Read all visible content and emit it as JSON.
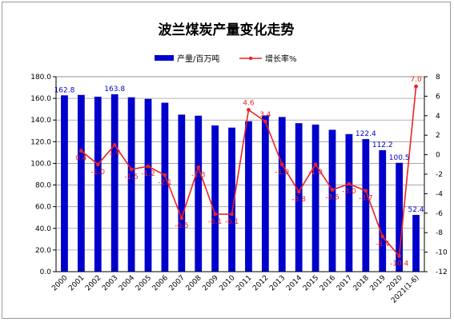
{
  "chart_data": {
    "type": "bar",
    "title": "波兰煤炭产量变化走势",
    "categories": [
      "2000",
      "2001",
      "2002",
      "2003",
      "2004",
      "2005",
      "2006",
      "2007",
      "2008",
      "2009",
      "2010",
      "2011",
      "2012",
      "2013",
      "2014",
      "2015",
      "2016",
      "2017",
      "2018",
      "2019",
      "2020",
      "2021(1-6)"
    ],
    "series": [
      {
        "name": "产量/百万吨",
        "type": "bar",
        "axis": "left",
        "color": "#0000cc",
        "values": [
          162.8,
          163.2,
          161.5,
          163.8,
          161.0,
          159.5,
          156.0,
          145.0,
          144.0,
          135.0,
          133.0,
          138.9,
          144.2,
          142.8,
          137.1,
          135.8,
          131.0,
          127.0,
          122.4,
          112.2,
          100.5,
          52.4
        ]
      },
      {
        "name": "增长率%",
        "type": "line",
        "axis": "right",
        "color": "#ee2222",
        "values": [
          null,
          0.4,
          -1.0,
          1.0,
          -1.5,
          -1.2,
          -2.1,
          -6.5,
          -1.3,
          -6.1,
          -6.1,
          4.6,
          3.4,
          -1.0,
          -3.8,
          -1.0,
          -3.6,
          -3.0,
          -3.7,
          -8.4,
          -10.4,
          7.0
        ]
      }
    ],
    "bar_labels": [
      {
        "index": 0,
        "text": "162.8"
      },
      {
        "index": 3,
        "text": "163.8"
      },
      {
        "index": 18,
        "text": "122.4"
      },
      {
        "index": 19,
        "text": "112.2"
      },
      {
        "index": 20,
        "text": "100.5"
      },
      {
        "index": 21,
        "text": "52.4"
      }
    ],
    "line_labels": [
      "",
      "0.4",
      "-1.0",
      "1.0",
      "-1.5",
      "-1.2",
      "-2.1",
      "-6.5",
      "-1.3",
      "-6.1",
      "-6.1",
      "4.6",
      "3.4",
      "-1.0",
      "-3.8",
      "-1.0",
      "-3.6",
      "-3.0",
      "-3.7",
      "-8.4",
      "-10.4",
      "7.0"
    ],
    "ylim_left": [
      0,
      180
    ],
    "yticks_left": [
      "0.0",
      "20.0",
      "40.0",
      "60.0",
      "80.0",
      "100.0",
      "120.0",
      "140.0",
      "160.0",
      "180.0"
    ],
    "ylim_right": [
      -12,
      8
    ],
    "yticks_right": [
      "-12",
      "-10",
      "-8",
      "-6",
      "-4",
      "-2",
      "0",
      "2",
      "4",
      "6",
      "8"
    ],
    "grid": true,
    "legend_position": "top"
  }
}
